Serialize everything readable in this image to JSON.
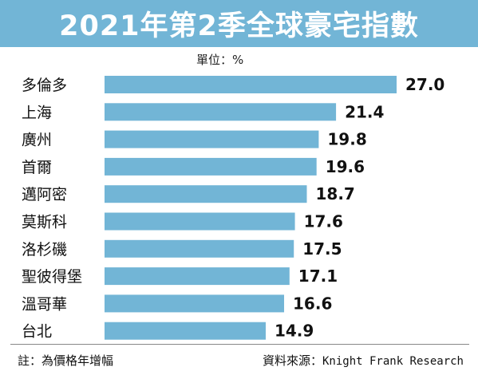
{
  "title": "2021年第2季全球豪宅指數",
  "unit_label": "單位：%",
  "note": "註：為價格年增幅",
  "source_label": "資料來源：",
  "source_name": "Knight Frank Research",
  "colors": {
    "title_bg": "#72b5d6",
    "bar": "#72b5d6",
    "text": "#111111"
  },
  "chart_data": {
    "type": "bar",
    "orientation": "horizontal",
    "title": "2021年第2季全球豪宅指數",
    "unit": "%",
    "categories": [
      "多倫多",
      "上海",
      "廣州",
      "首爾",
      "邁阿密",
      "莫斯科",
      "洛杉磯",
      "聖彼得堡",
      "溫哥華",
      "台北"
    ],
    "values": [
      27.0,
      21.4,
      19.8,
      19.6,
      18.7,
      17.6,
      17.5,
      17.1,
      16.6,
      14.9
    ],
    "value_labels": [
      "27.0",
      "21.4",
      "19.8",
      "19.6",
      "18.7",
      "17.6",
      "17.5",
      "17.1",
      "16.6",
      "14.9"
    ],
    "xlim": [
      0,
      27.0
    ],
    "grid": false,
    "legend": "none"
  }
}
